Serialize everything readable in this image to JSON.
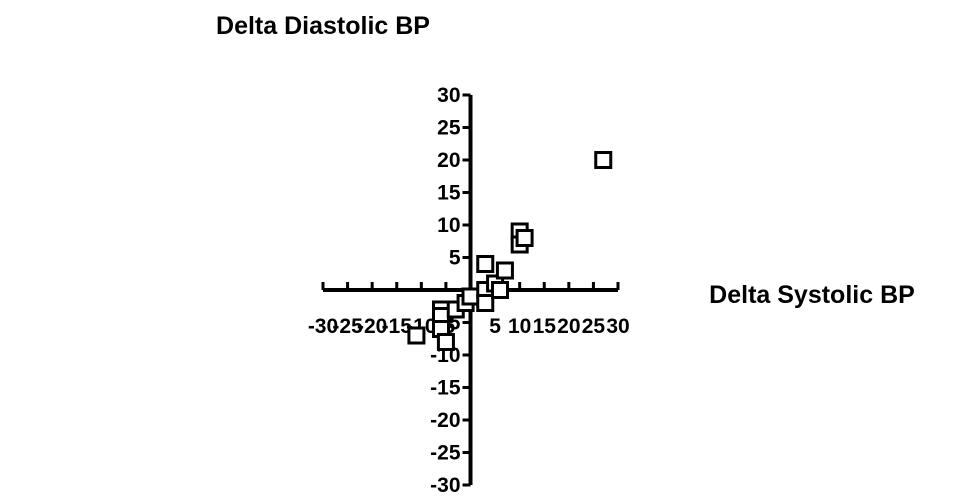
{
  "chart_data": {
    "type": "scatter",
    "title": "Delta Diastolic BP",
    "xlabel": "Delta Systolic BP",
    "ylabel": "",
    "xlim": [
      -30,
      30
    ],
    "ylim": [
      -30,
      30
    ],
    "x_ticks": [
      -30,
      -25,
      -20,
      -15,
      -10,
      -5,
      0,
      5,
      10,
      15,
      20,
      25,
      30
    ],
    "x_tick_labels": [
      "-30",
      "-25",
      "-20",
      "-15",
      "-10",
      "-5",
      "",
      "5",
      "10",
      "15",
      "20",
      "25",
      "30"
    ],
    "y_ticks": [
      -30,
      -25,
      -20,
      -15,
      -10,
      -5,
      0,
      5,
      10,
      15,
      20,
      25,
      30
    ],
    "y_tick_labels": [
      "-30",
      "-25",
      "-20",
      "-15",
      "-10",
      "-5",
      "",
      "5",
      "10",
      "15",
      "20",
      "25",
      "30"
    ],
    "marker": "open-square",
    "grid": false,
    "series": [
      {
        "points": [
          {
            "x": -11,
            "y": -7
          },
          {
            "x": -6,
            "y": -3
          },
          {
            "x": -6,
            "y": -4
          },
          {
            "x": -6,
            "y": -6
          },
          {
            "x": -5,
            "y": -8
          },
          {
            "x": -3,
            "y": -3
          },
          {
            "x": -1,
            "y": -2
          },
          {
            "x": 0,
            "y": -1
          },
          {
            "x": 3,
            "y": 4
          },
          {
            "x": 3,
            "y": 0
          },
          {
            "x": 3,
            "y": -2
          },
          {
            "x": 5,
            "y": 1
          },
          {
            "x": 6,
            "y": 0
          },
          {
            "x": 7,
            "y": 3
          },
          {
            "x": 10,
            "y": 9
          },
          {
            "x": 10,
            "y": 7
          },
          {
            "x": 11,
            "y": 8
          },
          {
            "x": 27,
            "y": 20
          }
        ]
      }
    ],
    "colors": {
      "axis": "#000000",
      "marker_stroke": "#000000",
      "marker_fill": "#ffffff"
    }
  }
}
